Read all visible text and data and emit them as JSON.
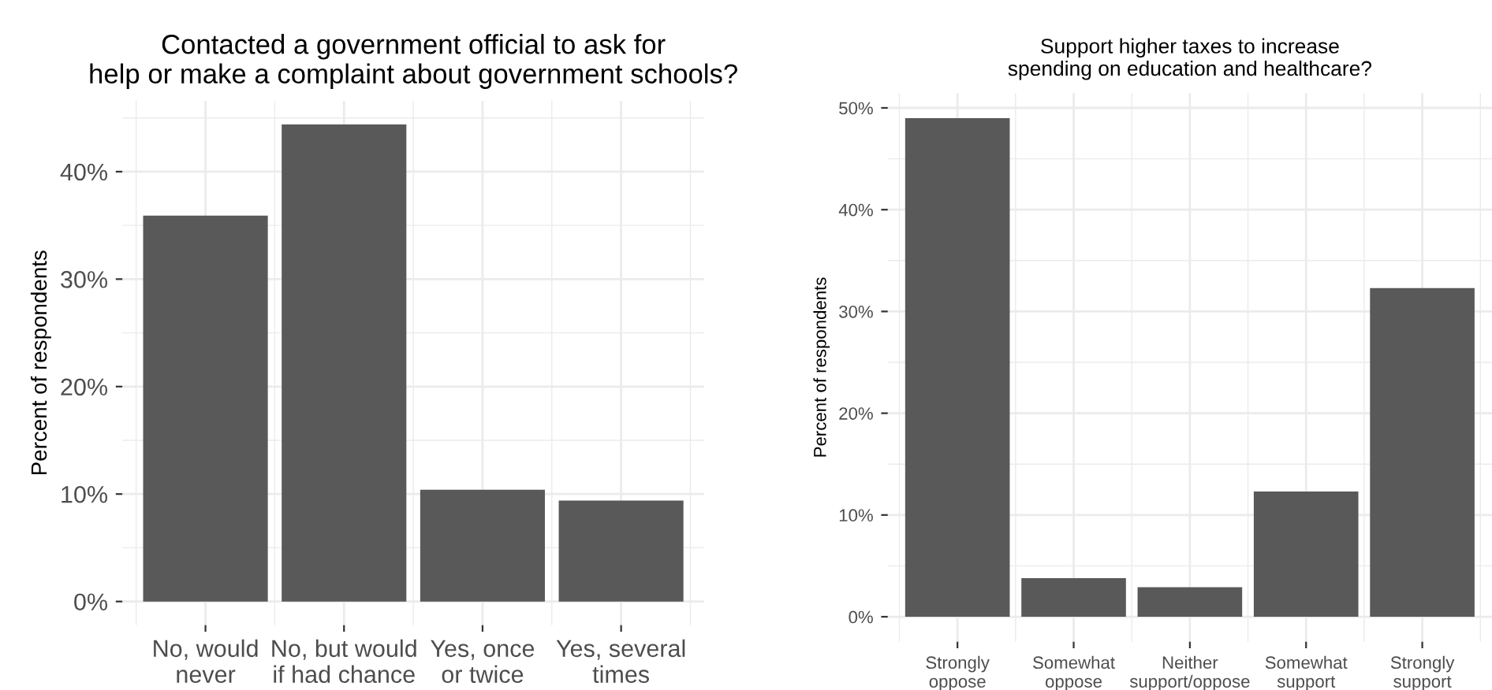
{
  "chart_data": [
    {
      "type": "bar",
      "title": "Contacted a government official to ask for\nhelp or make a complaint about government schools?",
      "ylabel": "Percent of respondents",
      "categories": [
        "No, would\nnever",
        "No, but would\nif had chance",
        "Yes, once\nor twice",
        "Yes, several\ntimes"
      ],
      "values": [
        35.9,
        44.4,
        10.4,
        9.4
      ],
      "color": "#595959",
      "ylim": [
        -2.2,
        46.6
      ],
      "yticks": [
        {
          "value": 0,
          "label": "0%"
        },
        {
          "value": 10,
          "label": "10%"
        },
        {
          "value": 20,
          "label": "20%"
        },
        {
          "value": 30,
          "label": "30%"
        },
        {
          "value": 40,
          "label": "40%"
        }
      ],
      "grid": true
    },
    {
      "type": "bar",
      "title": "Support higher taxes to increase\nspending on education and healthcare?",
      "ylabel": "Percent of respondents",
      "categories": [
        "Strongly\noppose",
        "Somewhat\noppose",
        "Neither\nsupport/oppose",
        "Somewhat\nsupport",
        "Strongly\nsupport"
      ],
      "values": [
        49.0,
        3.8,
        2.9,
        12.3,
        32.3
      ],
      "color": "#595959",
      "ylim": [
        -2.45,
        51.45
      ],
      "yticks": [
        {
          "value": 0,
          "label": "0%"
        },
        {
          "value": 10,
          "label": "10%"
        },
        {
          "value": 20,
          "label": "20%"
        },
        {
          "value": 30,
          "label": "30%"
        },
        {
          "value": 40,
          "label": "40%"
        },
        {
          "value": 50,
          "label": "50%"
        }
      ],
      "grid": true
    }
  ]
}
